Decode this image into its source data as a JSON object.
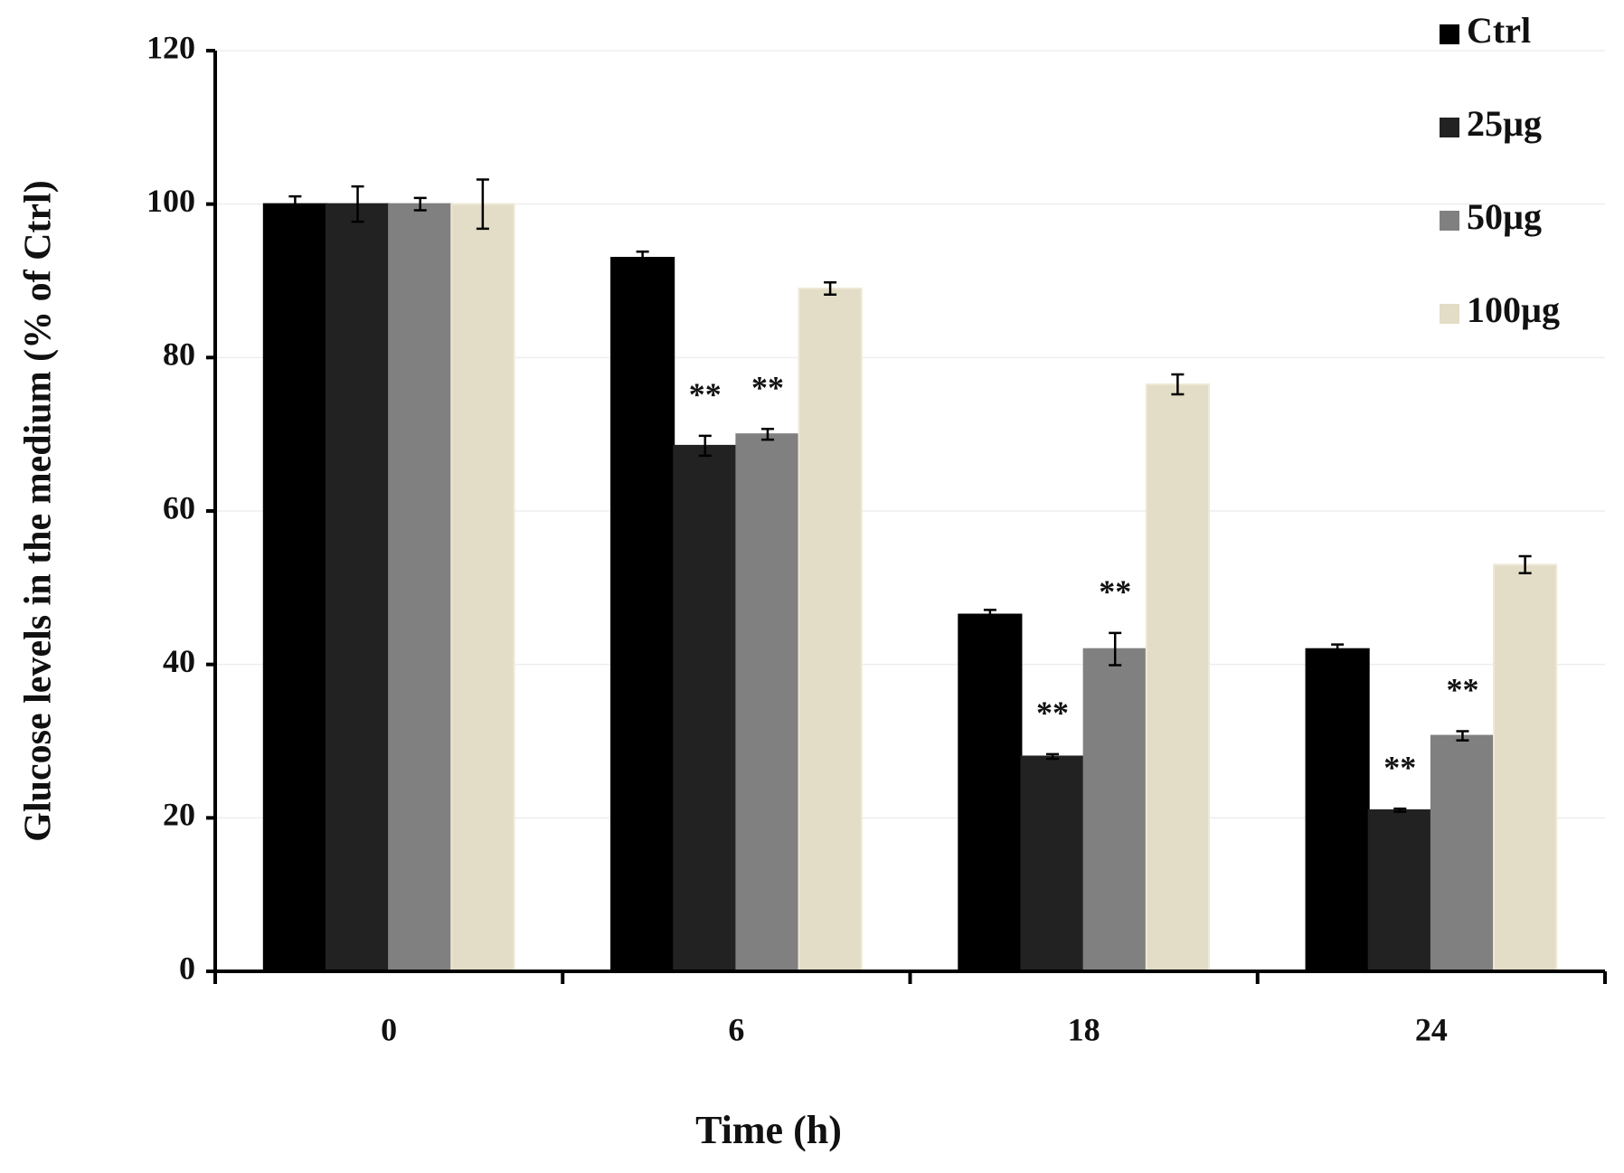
{
  "chart_data": {
    "type": "bar",
    "title": null,
    "x_label": "Time (h)",
    "y_label": "Glucose levels in the medium (% of Ctrl)",
    "categories": [
      "0",
      "6",
      "18",
      "24"
    ],
    "series": [
      {
        "name": "Ctrl",
        "color": "#000000",
        "values": [
          100,
          93,
          46.5,
          42
        ],
        "errors": [
          1,
          0.8,
          0.6,
          0.6
        ],
        "annotations": [
          null,
          null,
          null,
          null
        ]
      },
      {
        "name": "25µg",
        "color": "#222222",
        "values": [
          100,
          68.5,
          28,
          21
        ],
        "errors": [
          2.3,
          1.3,
          0.3,
          0.2
        ],
        "annotations": [
          null,
          "**",
          "**",
          "**"
        ]
      },
      {
        "name": "50µg",
        "color": "#808080",
        "values": [
          100,
          70,
          42,
          30.7
        ],
        "errors": [
          0.8,
          0.7,
          2.1,
          0.6
        ],
        "annotations": [
          null,
          "**",
          "**",
          "**"
        ]
      },
      {
        "name": "100µg",
        "color": "#e3dcc6",
        "values": [
          100,
          89,
          76.5,
          53
        ],
        "errors": [
          3.2,
          0.8,
          1.3,
          1.1
        ],
        "annotations": [
          null,
          null,
          null,
          null
        ]
      }
    ],
    "ylim": [
      0,
      120
    ],
    "yticks": [
      0,
      20,
      40,
      60,
      80,
      100,
      120
    ],
    "grid": true,
    "legend": "top-right"
  }
}
